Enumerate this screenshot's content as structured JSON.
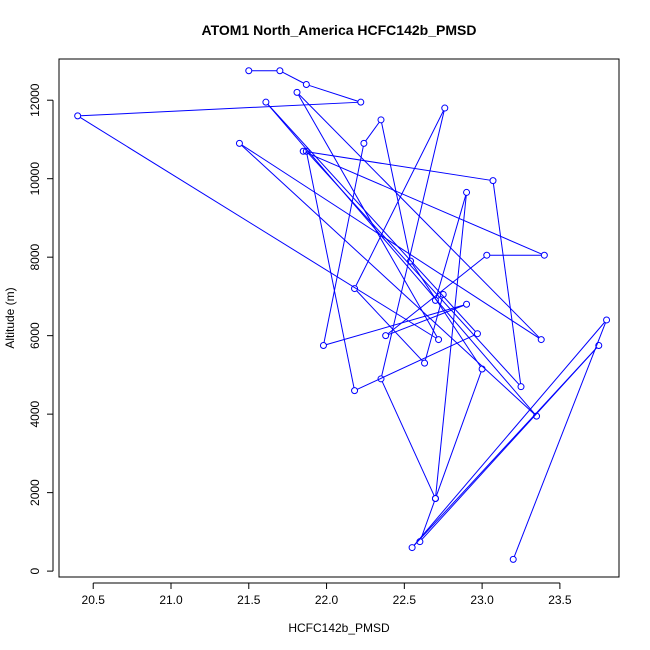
{
  "chart_data": {
    "type": "line",
    "title": "ATOM1 North_America HCFC142b_PMSD",
    "xlabel": "HCFC142b_PMSD",
    "ylabel": "Altitude (m)",
    "xlim": [
      20.28,
      23.88
    ],
    "ylim": [
      -150,
      13050
    ],
    "xticks": [
      20.5,
      21.0,
      21.5,
      22.0,
      22.5,
      23.0,
      23.5
    ],
    "xtick_labels": [
      "20.5",
      "21.0",
      "21.5",
      "22.0",
      "22.5",
      "23.0",
      "23.5"
    ],
    "yticks": [
      0,
      2000,
      4000,
      6000,
      8000,
      10000,
      12000
    ],
    "ytick_labels": [
      "0",
      "2000",
      "4000",
      "6000",
      "8000",
      "10000",
      "12000"
    ],
    "grid": false,
    "series": [
      {
        "color": "#0000ff",
        "marker": "open-circle",
        "points": [
          {
            "x": 23.2,
            "y": 300
          },
          {
            "x": 23.8,
            "y": 6400
          },
          {
            "x": 22.55,
            "y": 600
          },
          {
            "x": 23.75,
            "y": 5750
          },
          {
            "x": 22.6,
            "y": 750
          },
          {
            "x": 22.7,
            "y": 1850
          },
          {
            "x": 22.9,
            "y": 9650
          },
          {
            "x": 22.7,
            "y": 6900
          },
          {
            "x": 22.75,
            "y": 7050
          },
          {
            "x": 22.63,
            "y": 5300
          },
          {
            "x": 22.18,
            "y": 7200
          },
          {
            "x": 22.76,
            "y": 11800
          },
          {
            "x": 22.35,
            "y": 4900
          },
          {
            "x": 22.7,
            "y": 1850
          },
          {
            "x": 23.0,
            "y": 5150
          },
          {
            "x": 22.54,
            "y": 7900
          },
          {
            "x": 22.35,
            "y": 11500
          },
          {
            "x": 22.24,
            "y": 10900
          },
          {
            "x": 21.98,
            "y": 5750
          },
          {
            "x": 22.9,
            "y": 6800
          },
          {
            "x": 22.38,
            "y": 6000
          },
          {
            "x": 23.03,
            "y": 8050
          },
          {
            "x": 23.4,
            "y": 8050
          },
          {
            "x": 21.85,
            "y": 10700
          },
          {
            "x": 23.07,
            "y": 9950
          },
          {
            "x": 23.25,
            "y": 4700
          },
          {
            "x": 21.87,
            "y": 10700
          },
          {
            "x": 22.18,
            "y": 4600
          },
          {
            "x": 22.97,
            "y": 6050
          },
          {
            "x": 21.61,
            "y": 11950
          },
          {
            "x": 23.35,
            "y": 3950
          },
          {
            "x": 21.44,
            "y": 10900
          },
          {
            "x": 23.38,
            "y": 5900
          },
          {
            "x": 21.81,
            "y": 12200
          },
          {
            "x": 22.72,
            "y": 5900
          },
          {
            "x": 20.4,
            "y": 11600
          },
          {
            "x": 22.22,
            "y": 11950
          },
          {
            "x": 21.87,
            "y": 12400
          },
          {
            "x": 21.7,
            "y": 12750
          },
          {
            "x": 21.5,
            "y": 12750
          }
        ]
      }
    ]
  }
}
